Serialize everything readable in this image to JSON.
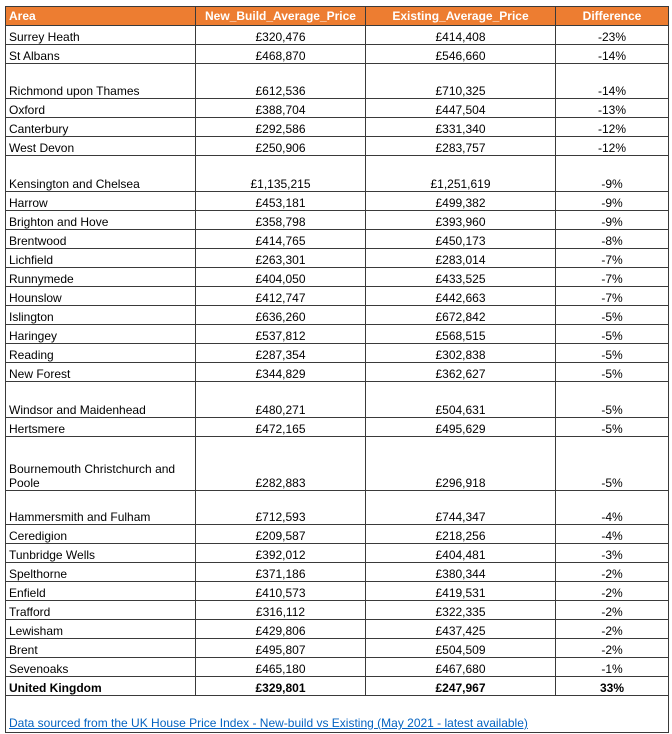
{
  "table": {
    "header": [
      "Area",
      "New_Build_Average_Price",
      "Existing_Average_Price",
      "Difference"
    ],
    "rows": [
      [
        "Surrey Heath",
        "£320,476",
        "£414,408",
        "-23%"
      ],
      [
        "St Albans",
        "£468,870",
        "£546,660",
        "-14%"
      ],
      [
        "Richmond upon Thames",
        "£612,536",
        "£710,325",
        "-14%"
      ],
      [
        "Oxford",
        "£388,704",
        "£447,504",
        "-13%"
      ],
      [
        "Canterbury",
        "£292,586",
        "£331,340",
        "-12%"
      ],
      [
        "West Devon",
        "£250,906",
        "£283,757",
        "-12%"
      ],
      [
        "Kensington and Chelsea",
        "£1,135,215",
        "£1,251,619",
        "-9%"
      ],
      [
        "Harrow",
        "£453,181",
        "£499,382",
        "-9%"
      ],
      [
        "Brighton and Hove",
        "£358,798",
        "£393,960",
        "-9%"
      ],
      [
        "Brentwood",
        "£414,765",
        "£450,173",
        "-8%"
      ],
      [
        "Lichfield",
        "£263,301",
        "£283,014",
        "-7%"
      ],
      [
        "Runnymede",
        "£404,050",
        "£433,525",
        "-7%"
      ],
      [
        "Hounslow",
        "£412,747",
        "£442,663",
        "-7%"
      ],
      [
        "Islington",
        "£636,260",
        "£672,842",
        "-5%"
      ],
      [
        "Haringey",
        "£537,812",
        "£568,515",
        "-5%"
      ],
      [
        "Reading",
        "£287,354",
        "£302,838",
        "-5%"
      ],
      [
        "New Forest",
        "£344,829",
        "£362,627",
        "-5%"
      ],
      [
        "Windsor and Maidenhead",
        "£480,271",
        "£504,631",
        "-5%"
      ],
      [
        "Hertsmere",
        "£472,165",
        "£495,629",
        "-5%"
      ],
      [
        "Bournemouth Christchurch and Poole",
        "£282,883",
        "£296,918",
        "-5%"
      ],
      [
        "Hammersmith and Fulham",
        "£712,593",
        "£744,347",
        "-4%"
      ],
      [
        "Ceredigion",
        "£209,587",
        "£218,256",
        "-4%"
      ],
      [
        "Tunbridge Wells",
        "£392,012",
        "£404,481",
        "-3%"
      ],
      [
        "Spelthorne",
        "£371,186",
        "£380,344",
        "-2%"
      ],
      [
        "Enfield",
        "£410,573",
        "£419,531",
        "-2%"
      ],
      [
        "Trafford",
        "£316,112",
        "£322,335",
        "-2%"
      ],
      [
        "Lewisham",
        "£429,806",
        "£437,425",
        "-2%"
      ],
      [
        "Brent",
        "£495,807",
        "£504,509",
        "-2%"
      ],
      [
        "Sevenoaks",
        "£465,180",
        "£467,680",
        "-1%"
      ],
      [
        "United Kingdom",
        "£329,801",
        "£247,967",
        "33%"
      ]
    ],
    "source_link": "Data sourced from the UK House Price Index - New-build vs Existing (May 2021 - latest available)"
  }
}
